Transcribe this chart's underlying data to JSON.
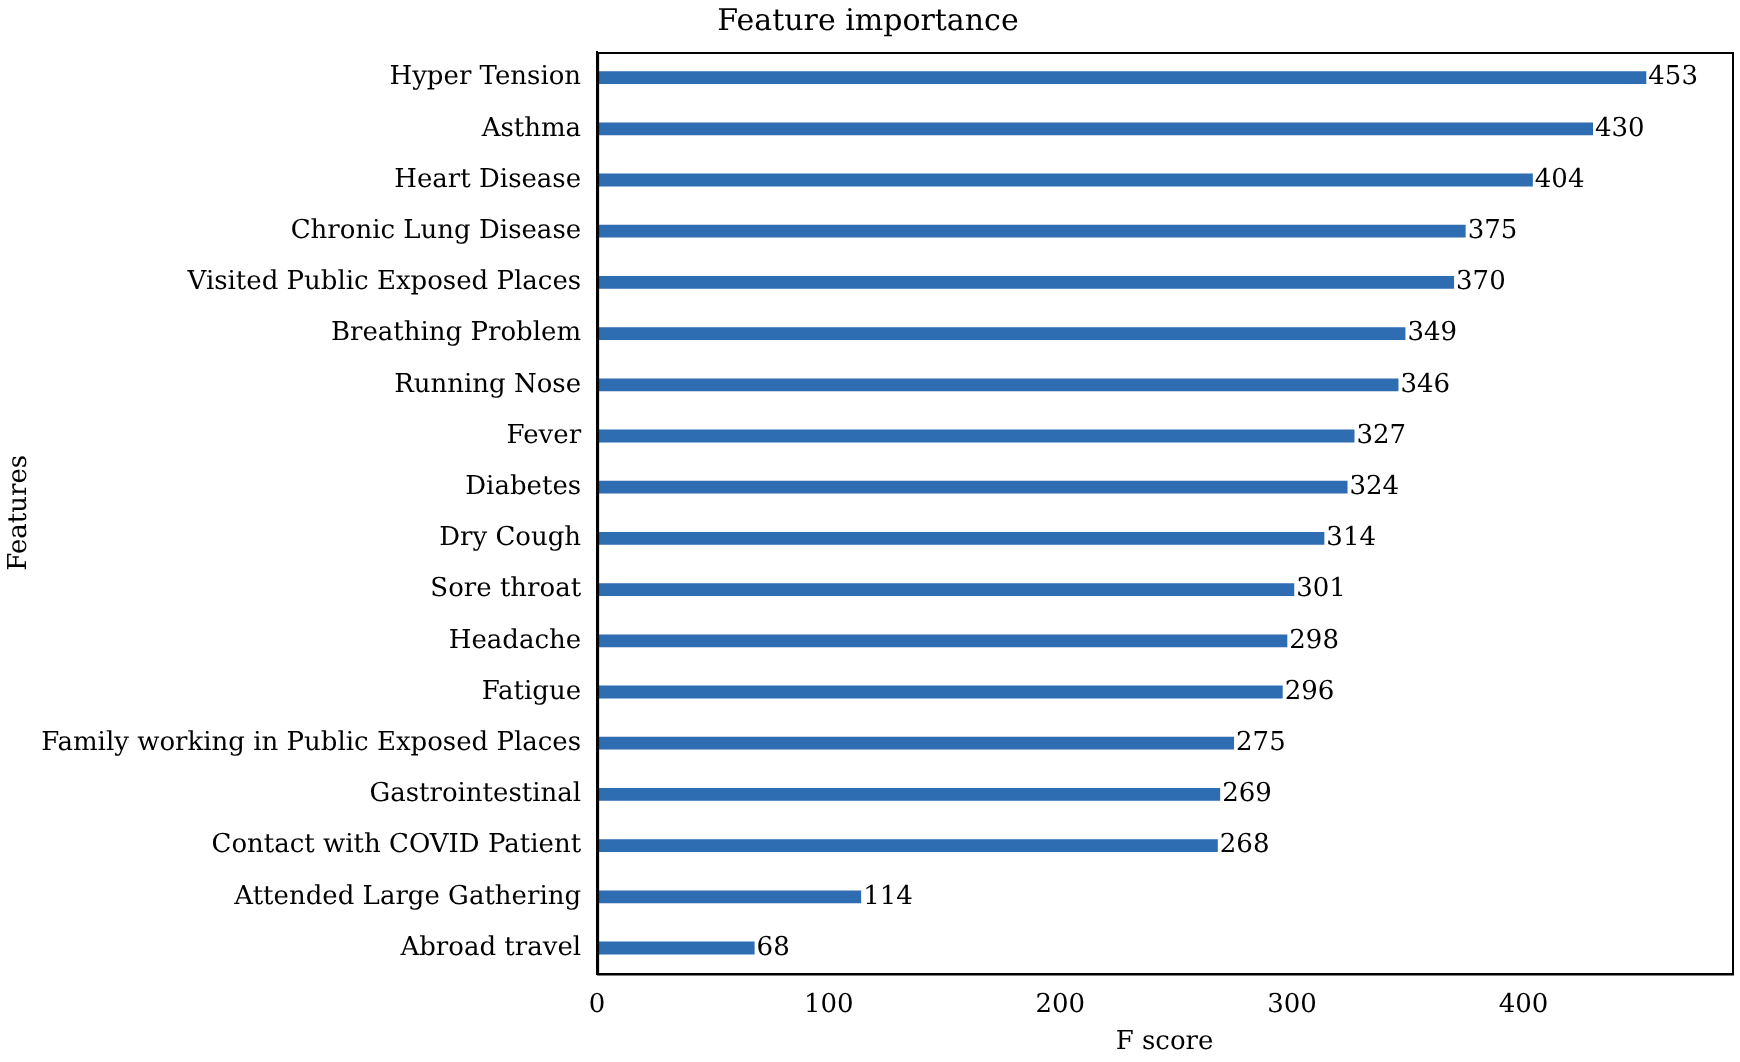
{
  "chart_data": {
    "type": "bar",
    "orientation": "horizontal",
    "title": "Feature importance",
    "xlabel": "F score",
    "ylabel": "Features",
    "categories": [
      "Hyper Tension",
      "Asthma",
      "Heart Disease",
      "Chronic Lung Disease",
      "Visited Public Exposed Places",
      "Breathing Problem",
      "Running Nose",
      "Fever",
      "Diabetes",
      "Dry Cough",
      "Sore throat",
      "Headache",
      "Fatigue",
      "Family working in Public Exposed Places",
      "Gastrointestinal",
      "Contact with COVID Patient",
      "Attended Large Gathering",
      "Abroad travel"
    ],
    "values": [
      453,
      430,
      404,
      375,
      370,
      349,
      346,
      327,
      324,
      314,
      301,
      298,
      296,
      275,
      269,
      268,
      114,
      68
    ],
    "color": "#2f6db3",
    "xlim": [
      0,
      490
    ],
    "xticks": [
      0,
      100,
      200,
      300,
      400
    ],
    "data_labels": true,
    "grid": false,
    "legend": false
  }
}
